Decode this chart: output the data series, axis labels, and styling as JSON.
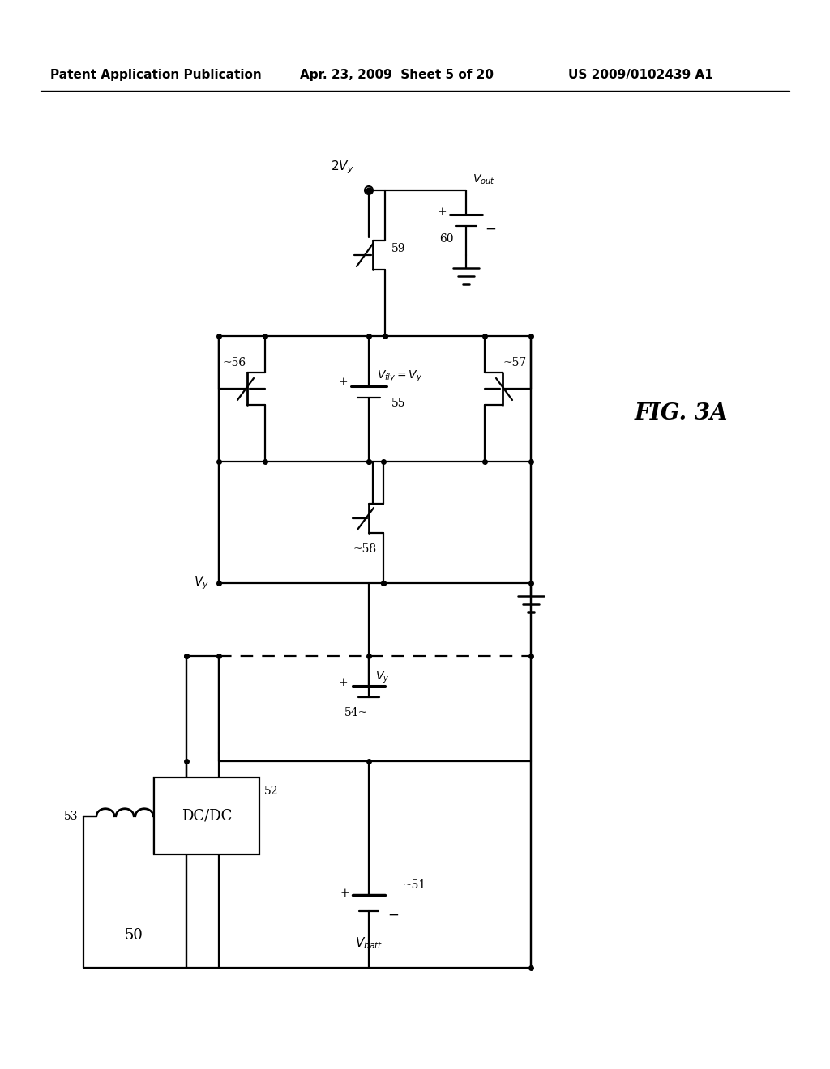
{
  "header_left": "Patent Application Publication",
  "header_mid": "Apr. 23, 2009  Sheet 5 of 20",
  "header_right": "US 2009/0102439 A1",
  "fig_label": "FIG. 3A",
  "background": "#ffffff",
  "line_color": "#000000",
  "text_color": "#000000",
  "lw": 1.6
}
